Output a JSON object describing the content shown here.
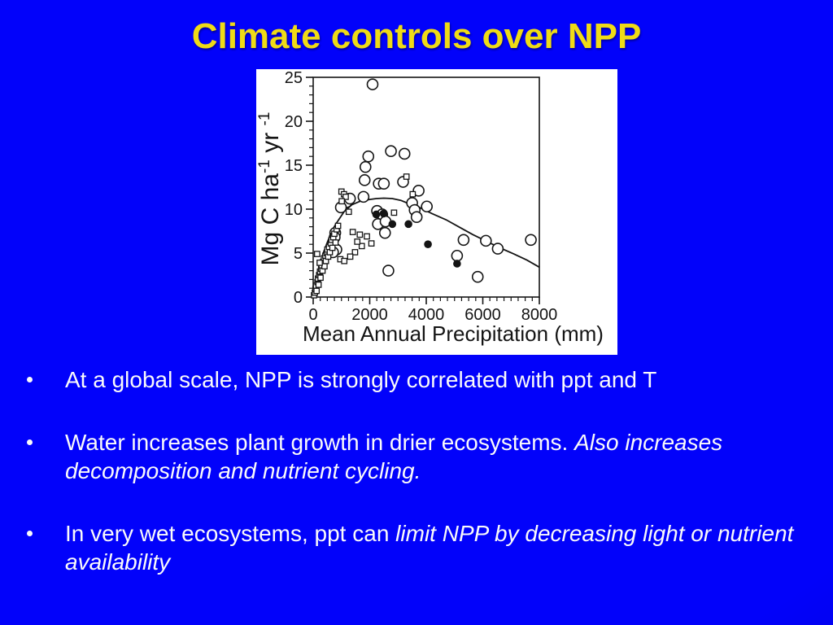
{
  "slide": {
    "title": "Climate controls over NPP",
    "bullets": [
      {
        "segments": [
          {
            "text": "At a global scale, NPP is strongly correlated with ppt and T",
            "italic": false
          }
        ]
      },
      {
        "segments": [
          {
            "text": "Water increases plant growth in drier ecosystems. ",
            "italic": false
          },
          {
            "text": "Also increases decomposition and nutrient cycling.",
            "italic": true
          }
        ]
      },
      {
        "segments": [
          {
            "text": "In very wet ecosystems, ppt can ",
            "italic": false
          },
          {
            "text": "limit NPP by decreasing light or nutrient availability",
            "italic": true
          }
        ]
      }
    ],
    "colors": {
      "background": "#0202FA",
      "background_edge": "#0000B8",
      "title": "#EFDB16",
      "text": "#FAFAFA",
      "panel": "#FFFFFF",
      "ink": "#141414"
    }
  },
  "chart_data": {
    "type": "scatter",
    "title": "",
    "xlabel": "Mean Annual Precipitation (mm)",
    "ylabel_segments": [
      {
        "text": "Mg C ha",
        "sup": false
      },
      {
        "text": "-1",
        "sup": true
      },
      {
        "text": " yr ",
        "sup": false
      },
      {
        "text": "-1",
        "sup": true
      }
    ],
    "xlim": [
      0,
      8000
    ],
    "ylim": [
      0,
      25
    ],
    "x_major_ticks": [
      0,
      2000,
      4000,
      6000,
      8000
    ],
    "x_minor_step": 250,
    "y_major_ticks": [
      0,
      5,
      10,
      15,
      20,
      25
    ],
    "y_minor_step": 1,
    "grid": false,
    "legend": "none",
    "series": [
      {
        "name": "open-circles",
        "marker": "circle-open",
        "points": [
          [
            2100,
            24.2
          ],
          [
            1950,
            16.0
          ],
          [
            2750,
            16.6
          ],
          [
            3230,
            16.3
          ],
          [
            1850,
            14.8
          ],
          [
            1820,
            13.3
          ],
          [
            2320,
            12.9
          ],
          [
            2500,
            12.9
          ],
          [
            3180,
            13.1
          ],
          [
            3730,
            12.1
          ],
          [
            1780,
            11.4
          ],
          [
            1180,
            10.8
          ],
          [
            1300,
            11.2
          ],
          [
            980,
            10.2
          ],
          [
            3500,
            10.7
          ],
          [
            4020,
            10.3
          ],
          [
            2260,
            9.8
          ],
          [
            2440,
            9.4
          ],
          [
            3590,
            9.9
          ],
          [
            3660,
            9.1
          ],
          [
            2290,
            8.3
          ],
          [
            2560,
            8.6
          ],
          [
            2540,
            7.3
          ],
          [
            780,
            7.3
          ],
          [
            760,
            6.8
          ],
          [
            820,
            5.4
          ],
          [
            700,
            5.1
          ],
          [
            5320,
            6.5
          ],
          [
            6110,
            6.4
          ],
          [
            6530,
            5.5
          ],
          [
            7700,
            6.5
          ],
          [
            5090,
            4.7
          ],
          [
            2660,
            3.0
          ],
          [
            5820,
            2.3
          ]
        ]
      },
      {
        "name": "open-squares",
        "marker": "square-open",
        "points": [
          [
            30,
            0.2
          ],
          [
            60,
            0.5
          ],
          [
            80,
            0.9
          ],
          [
            100,
            1.3
          ],
          [
            120,
            0.7
          ],
          [
            150,
            1.7
          ],
          [
            170,
            2.1
          ],
          [
            190,
            1.4
          ],
          [
            210,
            2.5
          ],
          [
            240,
            2.9
          ],
          [
            260,
            2.2
          ],
          [
            280,
            3.2
          ],
          [
            300,
            3.6
          ],
          [
            330,
            3.0
          ],
          [
            350,
            4.0
          ],
          [
            380,
            4.4
          ],
          [
            400,
            3.5
          ],
          [
            430,
            4.7
          ],
          [
            450,
            4.1
          ],
          [
            480,
            5.0
          ],
          [
            500,
            5.4
          ],
          [
            530,
            4.6
          ],
          [
            560,
            5.7
          ],
          [
            590,
            5.1
          ],
          [
            620,
            6.1
          ],
          [
            650,
            6.5
          ],
          [
            680,
            5.6
          ],
          [
            710,
            6.8
          ],
          [
            750,
            7.2
          ],
          [
            790,
            6.2
          ],
          [
            830,
            7.7
          ],
          [
            880,
            8.1
          ],
          [
            140,
            4.9
          ],
          [
            230,
            3.9
          ],
          [
            960,
            4.3
          ],
          [
            1000,
            12.0
          ],
          [
            1090,
            11.7
          ],
          [
            1150,
            11.4
          ],
          [
            1010,
            10.9
          ],
          [
            1260,
            9.7
          ],
          [
            1400,
            7.4
          ],
          [
            1650,
            7.1
          ],
          [
            1480,
            5.1
          ],
          [
            1310,
            4.6
          ],
          [
            1720,
            5.8
          ],
          [
            1100,
            4.1
          ],
          [
            1900,
            6.9
          ],
          [
            2060,
            6.1
          ],
          [
            1560,
            6.3
          ],
          [
            3300,
            13.7
          ],
          [
            3520,
            11.7
          ],
          [
            2860,
            9.6
          ]
        ]
      },
      {
        "name": "filled-circles",
        "marker": "circle-filled",
        "points": [
          [
            2230,
            9.4
          ],
          [
            2490,
            9.5
          ],
          [
            2800,
            8.3
          ],
          [
            3370,
            8.3
          ],
          [
            4060,
            6.0
          ],
          [
            5090,
            3.8
          ]
        ]
      }
    ],
    "trend_curve": [
      [
        30,
        0.3
      ],
      [
        120,
        2.0
      ],
      [
        230,
        3.7
      ],
      [
        380,
        5.2
      ],
      [
        510,
        6.3
      ],
      [
        660,
        7.5
      ],
      [
        800,
        8.3
      ],
      [
        1090,
        9.7
      ],
      [
        1370,
        10.5
      ],
      [
        1660,
        10.9
      ],
      [
        2000,
        11.1
      ],
      [
        2230,
        11.2
      ],
      [
        2500,
        11.25
      ],
      [
        2800,
        11.2
      ],
      [
        3100,
        11.0
      ],
      [
        3400,
        10.6
      ],
      [
        3750,
        10.2
      ],
      [
        4200,
        9.5
      ],
      [
        4700,
        8.8
      ],
      [
        5200,
        7.9
      ],
      [
        5650,
        7.1
      ],
      [
        6100,
        6.4
      ],
      [
        6600,
        5.6
      ],
      [
        7100,
        4.9
      ],
      [
        7560,
        4.2
      ],
      [
        8000,
        3.4
      ]
    ]
  }
}
